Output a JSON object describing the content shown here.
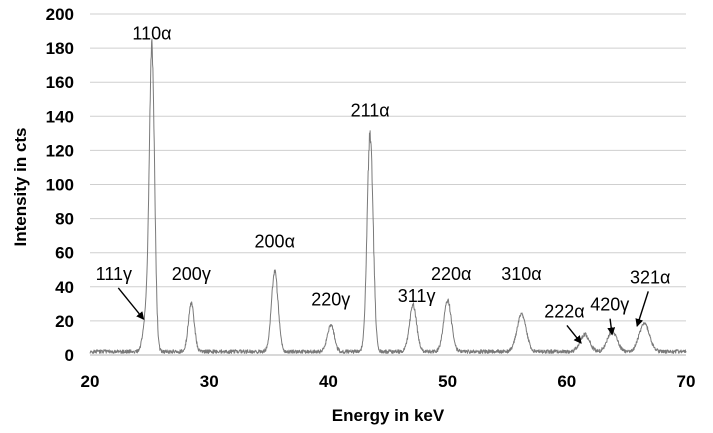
{
  "chart_data": {
    "type": "line",
    "title": "",
    "xlabel": "Energy in keV",
    "ylabel": "Intensity in cts",
    "xlim": [
      20,
      70
    ],
    "ylim": [
      0,
      200
    ],
    "xticks": [
      20,
      30,
      40,
      50,
      60,
      70
    ],
    "yticks": [
      0,
      20,
      40,
      60,
      80,
      100,
      120,
      140,
      160,
      180,
      200
    ],
    "grid": "horizontal",
    "line_color": "#7a7a7a",
    "baseline": 2,
    "peaks": [
      {
        "label": "111γ",
        "x": 24.7,
        "y": 20,
        "width": 0.25
      },
      {
        "label": "110α",
        "x": 25.2,
        "y": 175,
        "width": 0.22
      },
      {
        "label": "200γ",
        "x": 28.5,
        "y": 28,
        "width": 0.25
      },
      {
        "label": "200α",
        "x": 35.5,
        "y": 47,
        "width": 0.28
      },
      {
        "label": "220γ",
        "x": 40.2,
        "y": 16,
        "width": 0.28
      },
      {
        "label": "211α",
        "x": 43.5,
        "y": 129,
        "width": 0.25
      },
      {
        "label": "311γ",
        "x": 47.1,
        "y": 27,
        "width": 0.3
      },
      {
        "label": "220α",
        "x": 50.0,
        "y": 30,
        "width": 0.32
      },
      {
        "label": "310α",
        "x": 56.2,
        "y": 22,
        "width": 0.38
      },
      {
        "label": "222α",
        "x": 61.5,
        "y": 10,
        "width": 0.4
      },
      {
        "label": "420γ",
        "x": 63.8,
        "y": 12,
        "width": 0.4
      },
      {
        "label": "321α",
        "x": 66.5,
        "y": 17,
        "width": 0.42
      }
    ],
    "annotations": [
      {
        "text": "110α",
        "x": 25.2,
        "y": 185,
        "arrow": false
      },
      {
        "text": "200γ",
        "x": 28.5,
        "y": 44,
        "arrow": false
      },
      {
        "text": "200α",
        "x": 35.5,
        "y": 63,
        "arrow": false
      },
      {
        "text": "220γ",
        "x": 40.2,
        "y": 29,
        "arrow": false
      },
      {
        "text": "211α",
        "x": 43.5,
        "y": 140,
        "arrow": false
      },
      {
        "text": "311γ",
        "x": 47.4,
        "y": 31,
        "arrow": false
      },
      {
        "text": "220α",
        "x": 50.3,
        "y": 44,
        "arrow": false
      },
      {
        "text": "310α",
        "x": 56.2,
        "y": 44,
        "arrow": false
      },
      {
        "text": "111γ",
        "x": 22.0,
        "y": 44,
        "arrow": true,
        "arrow_to": [
          24.5,
          21
        ]
      },
      {
        "text": "222α",
        "x": 59.8,
        "y": 22,
        "arrow": true,
        "arrow_to": [
          61.2,
          7
        ]
      },
      {
        "text": "420γ",
        "x": 63.6,
        "y": 26,
        "arrow": true,
        "arrow_to": [
          63.8,
          12
        ]
      },
      {
        "text": "321α",
        "x": 67.0,
        "y": 42,
        "arrow": true,
        "arrow_to": [
          65.9,
          17
        ]
      }
    ]
  }
}
